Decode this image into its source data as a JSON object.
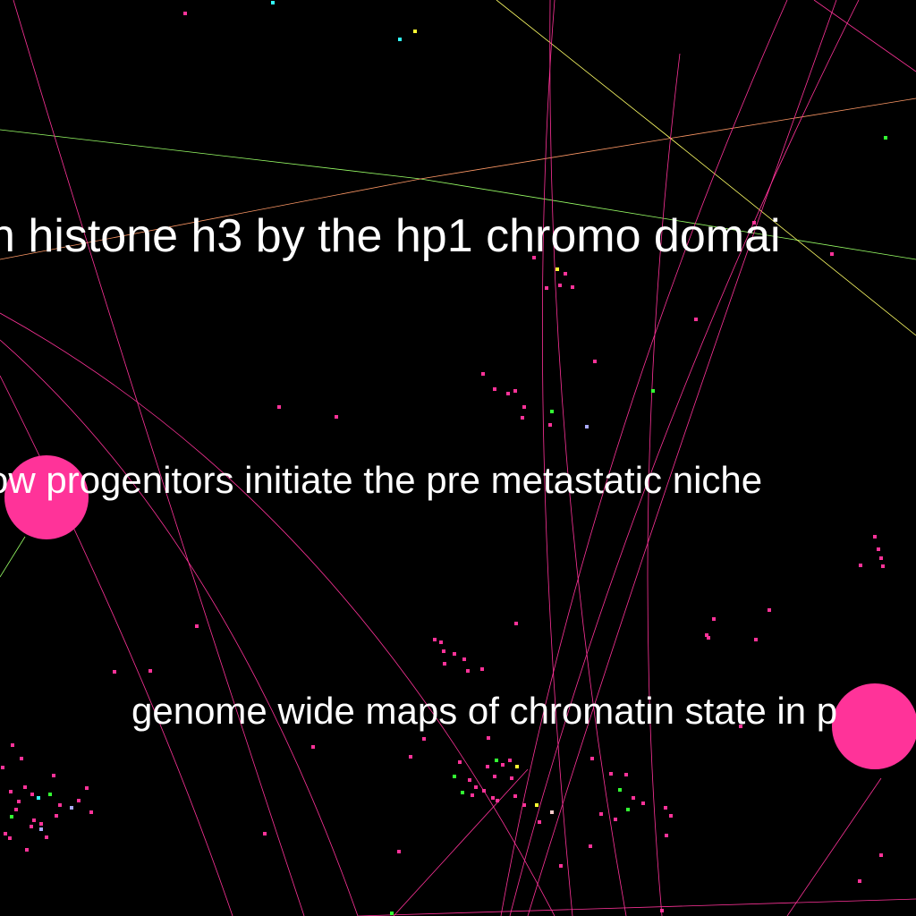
{
  "colors": {
    "background": "#000000",
    "label": "#ffffff",
    "node_primary": "#ff3399",
    "edge_primary": "#ff3399",
    "edge_yellow": "#ffff66",
    "edge_green": "#99ff66",
    "edge_orange": "#ff9966",
    "node_yellow": "#ffff33",
    "node_green": "#33ff33",
    "node_cyan": "#33ffff",
    "node_lavender": "#aaaaff",
    "node_pale": "#ffcccc"
  },
  "labels": [
    {
      "text": "n histone h3 by the hp1 chromo domai"
    },
    {
      "text": "ow progenitors initiate the pre metastatic niche"
    },
    {
      "text": "genome wide maps of chromatin state in p"
    }
  ]
}
